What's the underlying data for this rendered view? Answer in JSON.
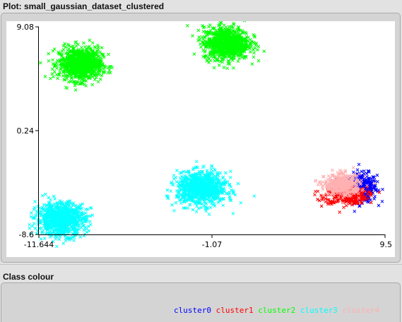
{
  "window": {
    "plot_title": "Plot: small_gaussian_dataset_clustered",
    "class_colour_title": "Class colour"
  },
  "chart_data": {
    "type": "scatter",
    "title": "",
    "xlabel": "",
    "ylabel": "",
    "xlim": [
      -11.644,
      9.5
    ],
    "ylim": [
      -8.6,
      9.08
    ],
    "x_ticks": [
      "-11.644",
      "-1.07",
      "9.5"
    ],
    "y_ticks": [
      "9.08",
      "0.24",
      "-8.6"
    ],
    "marker": "x",
    "series": [
      {
        "name": "cluster0",
        "color": "#0000ff",
        "center": [
          8.1,
          -4.6
        ],
        "spread": [
          0.45,
          0.6
        ],
        "count": 380
      },
      {
        "name": "cluster1",
        "color": "#ff0000",
        "center": [
          7.1,
          -5.3
        ],
        "spread": [
          0.65,
          0.35
        ],
        "count": 420
      },
      {
        "name": "cluster2",
        "color": "#00ff00",
        "center": [
          -9.1,
          5.9
        ],
        "spread": [
          0.65,
          0.7
        ],
        "count": 900
      },
      {
        "name": "cluster2",
        "color": "#00ff00",
        "center": [
          -0.2,
          7.7
        ],
        "spread": [
          0.7,
          0.7
        ],
        "count": 900
      },
      {
        "name": "cluster3",
        "color": "#00ffff",
        "center": [
          -1.7,
          -4.7
        ],
        "spread": [
          0.75,
          0.7
        ],
        "count": 900
      },
      {
        "name": "cluster3",
        "color": "#00ffff",
        "center": [
          -10.3,
          -7.3
        ],
        "spread": [
          0.75,
          0.7
        ],
        "count": 900
      },
      {
        "name": "cluster4",
        "color": "#ffb0b0",
        "center": [
          6.9,
          -4.4
        ],
        "spread": [
          0.55,
          0.45
        ],
        "count": 420
      }
    ],
    "legend": {
      "placement": "bottom-center",
      "entries": [
        {
          "label": "cluster0",
          "color": "#0000ff"
        },
        {
          "label": "cluster1",
          "color": "#ff0000"
        },
        {
          "label": "cluster2",
          "color": "#00ff00"
        },
        {
          "label": "cluster3",
          "color": "#00ffff"
        },
        {
          "label": "cluster4",
          "color": "#ffb0b0"
        }
      ]
    }
  }
}
